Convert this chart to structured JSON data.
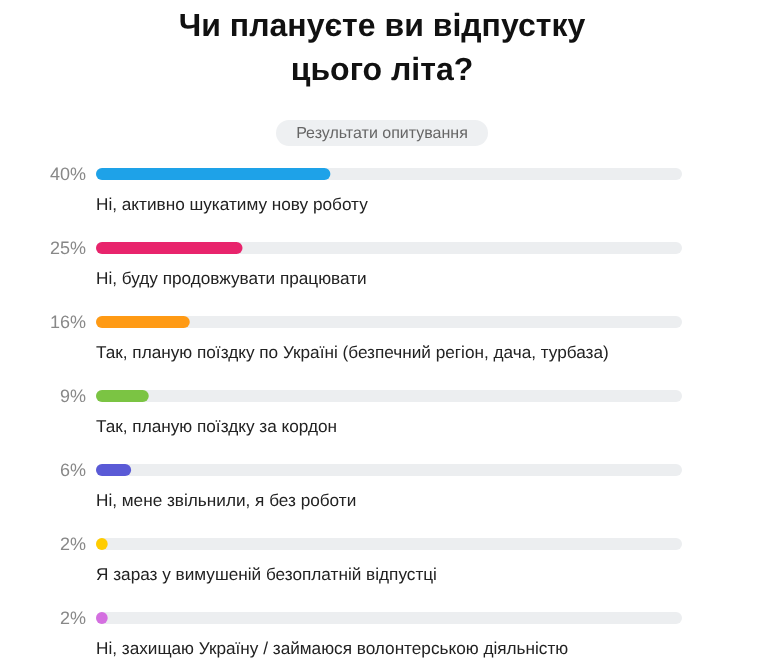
{
  "chart_data": {
    "type": "bar",
    "orientation": "horizontal",
    "title": "Чи плануєте ви відпустку цього літа?",
    "subtitle": "Результати опитування",
    "categories": [
      "Ні, активно шукатиму нову роботу",
      "Ні, буду продовжувати працювати",
      "Так, планую поїздку по Україні (безпечний регіон, дача, турбаза)",
      "Так, планую поїздку за кордон",
      "Ні, мене звільнили, я без роботи",
      "Я зараз у вимушеній безоплатній відпустці",
      "Ні, захищаю Україну / займаюся волонтерською діяльністю"
    ],
    "values": [
      40,
      25,
      16,
      9,
      6,
      2,
      2
    ],
    "value_labels": [
      "40%",
      "25%",
      "16%",
      "9%",
      "6%",
      "2%",
      "2%"
    ],
    "colors": [
      "#1ea2e8",
      "#e8246c",
      "#ff9a14",
      "#7bc443",
      "#5a5ad6",
      "#ffcc00",
      "#d46fe0"
    ]
  }
}
